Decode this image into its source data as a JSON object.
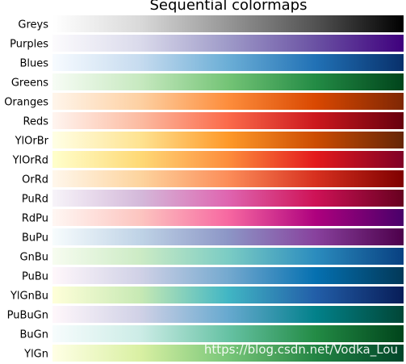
{
  "chart_data": {
    "type": "heatmap",
    "title": "Sequential colormaps",
    "xlabel": "",
    "ylabel": "",
    "colormaps": [
      {
        "name": "Greys",
        "stops": [
          "#ffffff",
          "#d9d9d9",
          "#969696",
          "#525252",
          "#000000"
        ]
      },
      {
        "name": "Purples",
        "stops": [
          "#fcfbfd",
          "#dadaeb",
          "#9e9ac8",
          "#6a51a3",
          "#3f007d"
        ]
      },
      {
        "name": "Blues",
        "stops": [
          "#f7fbff",
          "#c6dbef",
          "#6baed6",
          "#2171b5",
          "#08306b"
        ]
      },
      {
        "name": "Greens",
        "stops": [
          "#f7fcf5",
          "#c7e9c0",
          "#74c476",
          "#238b45",
          "#00441b"
        ]
      },
      {
        "name": "Oranges",
        "stops": [
          "#fff5eb",
          "#fdd0a2",
          "#fd8d3c",
          "#d94801",
          "#7f2704"
        ]
      },
      {
        "name": "Reds",
        "stops": [
          "#fff5f0",
          "#fcbba1",
          "#fb6a4a",
          "#cb181d",
          "#67000d"
        ]
      },
      {
        "name": "YlOrBr",
        "stops": [
          "#ffffe5",
          "#fee391",
          "#fe9929",
          "#cc4c02",
          "#662506"
        ]
      },
      {
        "name": "YlOrRd",
        "stops": [
          "#ffffcc",
          "#fed976",
          "#fd8d3c",
          "#e31a1c",
          "#800026"
        ]
      },
      {
        "name": "OrRd",
        "stops": [
          "#fff7ec",
          "#fdd49e",
          "#fc8d59",
          "#d7301f",
          "#7f0000"
        ]
      },
      {
        "name": "PuRd",
        "stops": [
          "#f7f4f9",
          "#d4b9da",
          "#df65b0",
          "#ce1256",
          "#67001f"
        ]
      },
      {
        "name": "RdPu",
        "stops": [
          "#fff7f3",
          "#fcc5c0",
          "#f768a1",
          "#ae017e",
          "#49006a"
        ]
      },
      {
        "name": "BuPu",
        "stops": [
          "#f7fcfd",
          "#bfd3e6",
          "#8c96c6",
          "#88419d",
          "#4d004b"
        ]
      },
      {
        "name": "GnBu",
        "stops": [
          "#f7fcf0",
          "#ccebc5",
          "#7bccc4",
          "#2b8cbe",
          "#084081"
        ]
      },
      {
        "name": "PuBu",
        "stops": [
          "#fff7fb",
          "#d0d1e6",
          "#74a9cf",
          "#0570b0",
          "#023858"
        ]
      },
      {
        "name": "YlGnBu",
        "stops": [
          "#ffffd9",
          "#c7e9b4",
          "#41b6c4",
          "#225ea8",
          "#081d58"
        ]
      },
      {
        "name": "PuBuGn",
        "stops": [
          "#fff7fb",
          "#d0d1e6",
          "#67a9cf",
          "#02818a",
          "#014636"
        ]
      },
      {
        "name": "BuGn",
        "stops": [
          "#f7fcfd",
          "#ccece6",
          "#66c2a4",
          "#238b45",
          "#00441b"
        ]
      },
      {
        "name": "YlGn",
        "stops": [
          "#ffffe5",
          "#d9f0a3",
          "#78c679",
          "#238443",
          "#004529"
        ]
      }
    ],
    "watermark": "https://blog.csdn.net/Vodka_Lou"
  }
}
